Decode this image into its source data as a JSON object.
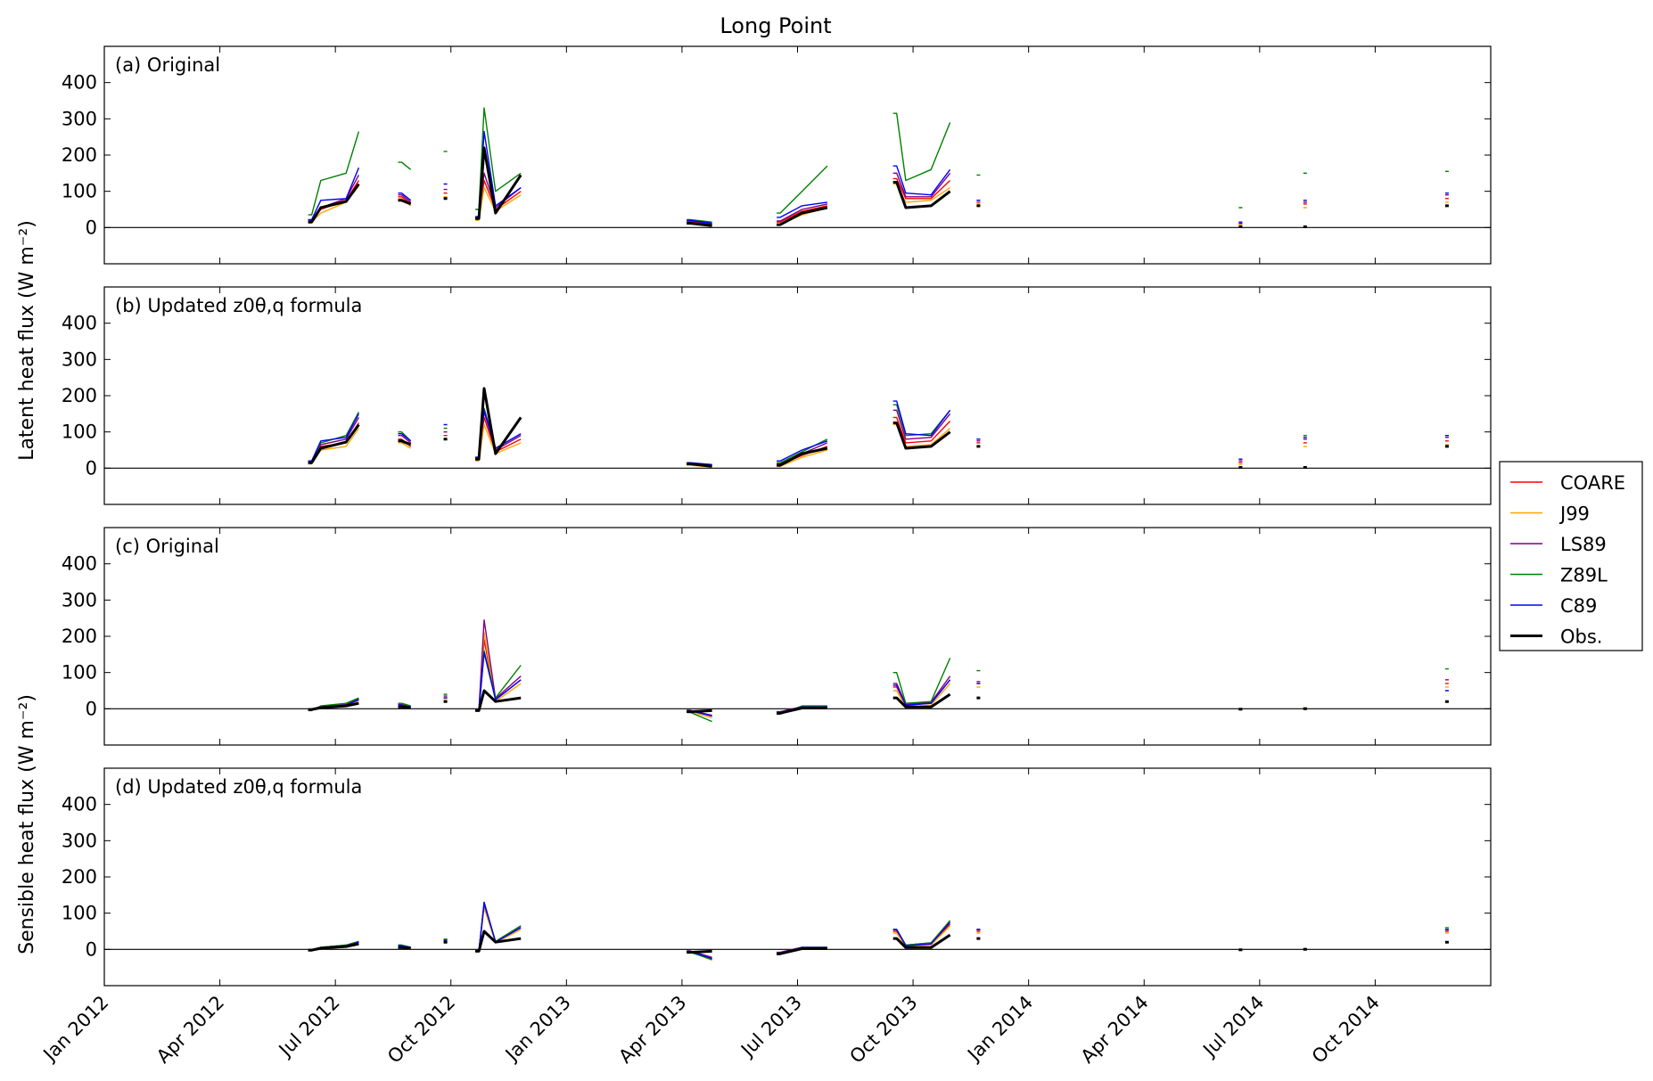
{
  "figure_title": "Long Point",
  "colors": {
    "COARE": "#ff0000",
    "J99": "#ffa500",
    "LS89": "#800080",
    "Z89L": "#008000",
    "C89": "#0000ff",
    "Obs.": "#000000"
  },
  "legend": {
    "placement": "right-center",
    "entries": [
      "COARE",
      "J99",
      "LS89",
      "Z89L",
      "C89",
      "Obs."
    ]
  },
  "ylabels": {
    "latent": "Latent heat flux (W m⁻²)",
    "sensible": "Sensible heat flux (W m⁻²)"
  },
  "x_ticks": [
    "Jan 2012",
    "Apr 2012",
    "Jul 2012",
    "Oct 2012",
    "Jan 2013",
    "Apr 2013",
    "Jul 2013",
    "Oct 2013",
    "Jan 2014",
    "Apr 2014",
    "Jul 2014",
    "Oct 2014"
  ],
  "chart_data": [
    {
      "type": "line",
      "panel_label": "(a) Original",
      "xlim": [
        "2012-01-01",
        "2014-12-31"
      ],
      "ylim": [
        -100,
        500
      ],
      "yticks": [
        0,
        100,
        200,
        300,
        400
      ],
      "x": [
        "2012-06-10",
        "2012-06-20",
        "2012-07-10",
        "2012-07-20",
        "2012-08-20",
        "2012-08-30",
        "2012-09-25",
        "2012-10-20",
        "2012-10-27",
        "2012-11-05",
        "2012-11-25",
        "2013-04-05",
        "2013-04-25",
        "2013-06-15",
        "2013-07-05",
        "2013-07-25",
        "2013-09-15",
        "2013-09-25",
        "2013-10-15",
        "2013-10-30",
        "2013-11-20",
        "2014-06-15",
        "2014-08-05",
        "2014-11-25"
      ],
      "series": [
        {
          "name": "COARE",
          "values": [
            18,
            50,
            75,
            130,
            85,
            65,
            95,
            25,
            130,
            50,
            100,
            15,
            8,
            15,
            45,
            60,
            135,
            80,
            80,
            130,
            70,
            10,
            65,
            80
          ]
        },
        {
          "name": "J99",
          "values": [
            15,
            40,
            70,
            115,
            80,
            60,
            85,
            20,
            110,
            45,
            90,
            10,
            5,
            10,
            35,
            55,
            120,
            70,
            75,
            110,
            65,
            8,
            55,
            70
          ]
        },
        {
          "name": "LS89",
          "values": [
            20,
            55,
            80,
            145,
            90,
            70,
            105,
            28,
            150,
            55,
            110,
            18,
            10,
            18,
            50,
            65,
            150,
            85,
            85,
            150,
            75,
            12,
            70,
            90
          ]
        },
        {
          "name": "Z89L",
          "values": [
            35,
            130,
            150,
            265,
            180,
            160,
            210,
            50,
            330,
            100,
            150,
            22,
            15,
            40,
            100,
            170,
            315,
            130,
            160,
            290,
            145,
            55,
            150,
            155
          ]
        },
        {
          "name": "C89",
          "values": [
            22,
            75,
            80,
            165,
            95,
            75,
            120,
            30,
            265,
            60,
            110,
            20,
            12,
            28,
            60,
            70,
            170,
            95,
            90,
            160,
            75,
            15,
            75,
            95
          ]
        },
        {
          "name": "Obs.",
          "values": [
            15,
            55,
            72,
            120,
            75,
            65,
            80,
            25,
            220,
            40,
            145,
            12,
            5,
            8,
            40,
            55,
            125,
            55,
            60,
            100,
            60,
            2,
            2,
            60
          ]
        }
      ]
    },
    {
      "type": "line",
      "panel_label": "(b) Updated z0θ,q formula",
      "xlim": [
        "2012-01-01",
        "2014-12-31"
      ],
      "ylim": [
        -100,
        500
      ],
      "yticks": [
        0,
        100,
        200,
        300,
        400
      ],
      "x": [
        "2012-06-10",
        "2012-06-20",
        "2012-07-10",
        "2012-07-20",
        "2012-08-20",
        "2012-08-30",
        "2012-09-25",
        "2012-10-20",
        "2012-10-27",
        "2012-11-05",
        "2012-11-25",
        "2013-04-05",
        "2013-04-25",
        "2013-06-15",
        "2013-07-05",
        "2013-07-25",
        "2013-09-15",
        "2013-09-25",
        "2013-10-15",
        "2013-10-30",
        "2013-11-20",
        "2014-06-15",
        "2014-08-05",
        "2014-11-25"
      ],
      "series": [
        {
          "name": "COARE",
          "values": [
            15,
            60,
            70,
            125,
            80,
            60,
            90,
            25,
            140,
            45,
            80,
            10,
            5,
            10,
            35,
            60,
            140,
            70,
            75,
            130,
            70,
            15,
            70,
            75
          ]
        },
        {
          "name": "J99",
          "values": [
            12,
            50,
            60,
            110,
            70,
            55,
            80,
            20,
            120,
            40,
            70,
            8,
            3,
            5,
            30,
            50,
            120,
            60,
            65,
            110,
            60,
            10,
            60,
            65
          ]
        },
        {
          "name": "LS89",
          "values": [
            18,
            65,
            80,
            140,
            90,
            70,
            100,
            28,
            155,
            50,
            90,
            12,
            8,
            12,
            40,
            70,
            160,
            80,
            85,
            150,
            75,
            20,
            80,
            85
          ]
        },
        {
          "name": "Z89L",
          "values": [
            20,
            70,
            90,
            155,
            100,
            75,
            110,
            30,
            165,
            55,
            95,
            14,
            10,
            15,
            45,
            80,
            175,
            90,
            95,
            160,
            80,
            25,
            90,
            90
          ]
        },
        {
          "name": "C89",
          "values": [
            20,
            75,
            85,
            150,
            95,
            75,
            120,
            30,
            160,
            55,
            95,
            15,
            10,
            20,
            50,
            75,
            185,
            95,
            90,
            160,
            80,
            25,
            85,
            90
          ]
        },
        {
          "name": "Obs.",
          "values": [
            15,
            55,
            72,
            120,
            75,
            65,
            80,
            25,
            220,
            40,
            140,
            12,
            5,
            8,
            40,
            55,
            125,
            55,
            60,
            100,
            60,
            2,
            2,
            60
          ]
        }
      ]
    },
    {
      "type": "line",
      "panel_label": "(c) Original",
      "xlim": [
        "2012-01-01",
        "2014-12-31"
      ],
      "ylim": [
        -100,
        500
      ],
      "yticks": [
        0,
        100,
        200,
        300,
        400
      ],
      "x": [
        "2012-06-10",
        "2012-06-20",
        "2012-07-10",
        "2012-07-20",
        "2012-08-20",
        "2012-08-30",
        "2012-09-25",
        "2012-10-20",
        "2012-10-27",
        "2012-11-05",
        "2012-11-25",
        "2013-04-05",
        "2013-04-25",
        "2013-06-15",
        "2013-07-05",
        "2013-07-25",
        "2013-09-15",
        "2013-09-25",
        "2013-10-15",
        "2013-10-30",
        "2013-11-20",
        "2014-06-15",
        "2014-08-05",
        "2014-11-25"
      ],
      "series": [
        {
          "name": "COARE",
          "values": [
            -2,
            5,
            10,
            25,
            10,
            5,
            30,
            -5,
            190,
            25,
            80,
            -5,
            -20,
            -10,
            5,
            5,
            60,
            10,
            15,
            80,
            70,
            -2,
            0,
            70
          ]
        },
        {
          "name": "J99",
          "values": [
            -3,
            3,
            8,
            20,
            8,
            3,
            25,
            -5,
            210,
            20,
            70,
            -8,
            -25,
            -12,
            3,
            3,
            50,
            5,
            10,
            70,
            60,
            -3,
            -2,
            60
          ]
        },
        {
          "name": "LS89",
          "values": [
            -1,
            6,
            12,
            28,
            12,
            6,
            35,
            -4,
            245,
            28,
            90,
            -4,
            -18,
            -8,
            6,
            6,
            70,
            12,
            18,
            90,
            75,
            -1,
            1,
            80
          ]
        },
        {
          "name": "Z89L",
          "values": [
            -5,
            8,
            15,
            30,
            15,
            8,
            40,
            -6,
            160,
            30,
            120,
            -10,
            -35,
            -15,
            8,
            8,
            100,
            15,
            20,
            140,
            105,
            -2,
            2,
            110
          ]
        },
        {
          "name": "C89",
          "values": [
            -2,
            5,
            10,
            25,
            10,
            5,
            30,
            -5,
            155,
            25,
            80,
            -5,
            -20,
            -10,
            5,
            5,
            65,
            10,
            15,
            80,
            70,
            -2,
            0,
            50
          ]
        },
        {
          "name": "Obs.",
          "values": [
            -2,
            3,
            8,
            15,
            5,
            3,
            20,
            -5,
            50,
            20,
            30,
            -8,
            -5,
            -12,
            2,
            2,
            30,
            5,
            5,
            40,
            30,
            -1,
            0,
            20
          ]
        }
      ]
    },
    {
      "type": "line",
      "panel_label": "(d) Updated z0θ,q formula",
      "xlim": [
        "2012-01-01",
        "2014-12-31"
      ],
      "ylim": [
        -100,
        500
      ],
      "yticks": [
        0,
        100,
        200,
        300,
        400
      ],
      "x": [
        "2012-06-10",
        "2012-06-20",
        "2012-07-10",
        "2012-07-20",
        "2012-08-20",
        "2012-08-30",
        "2012-09-25",
        "2012-10-20",
        "2012-10-27",
        "2012-11-05",
        "2012-11-25",
        "2013-04-05",
        "2013-04-25",
        "2013-06-15",
        "2013-07-05",
        "2013-07-25",
        "2013-09-15",
        "2013-09-25",
        "2013-10-15",
        "2013-10-30",
        "2013-11-20",
        "2014-06-15",
        "2014-08-05",
        "2014-11-25"
      ],
      "series": [
        {
          "name": "COARE",
          "values": [
            -2,
            5,
            10,
            20,
            10,
            5,
            25,
            -5,
            120,
            20,
            60,
            -5,
            -25,
            -10,
            5,
            5,
            50,
            10,
            15,
            70,
            50,
            -2,
            0,
            50
          ]
        },
        {
          "name": "J99",
          "values": [
            -3,
            4,
            8,
            18,
            8,
            4,
            22,
            -5,
            115,
            18,
            55,
            -6,
            -30,
            -12,
            4,
            4,
            45,
            8,
            12,
            65,
            45,
            -3,
            -1,
            45
          ]
        },
        {
          "name": "LS89",
          "values": [
            -1,
            6,
            12,
            22,
            12,
            6,
            28,
            -4,
            125,
            22,
            65,
            -4,
            -22,
            -8,
            6,
            6,
            55,
            12,
            18,
            75,
            55,
            -1,
            1,
            55
          ]
        },
        {
          "name": "Z89L",
          "values": [
            -4,
            6,
            12,
            22,
            12,
            6,
            28,
            -5,
            130,
            22,
            65,
            -8,
            -28,
            -14,
            6,
            6,
            55,
            12,
            18,
            80,
            55,
            -2,
            2,
            60
          ]
        },
        {
          "name": "C89",
          "values": [
            -2,
            5,
            10,
            20,
            10,
            5,
            25,
            -5,
            130,
            20,
            60,
            -5,
            -25,
            -10,
            5,
            5,
            55,
            10,
            15,
            75,
            55,
            -2,
            0,
            55
          ]
        },
        {
          "name": "Obs.",
          "values": [
            -2,
            3,
            8,
            15,
            5,
            3,
            20,
            -5,
            50,
            20,
            30,
            -8,
            -5,
            -12,
            2,
            2,
            30,
            5,
            5,
            40,
            30,
            -1,
            0,
            20
          ]
        }
      ]
    }
  ]
}
